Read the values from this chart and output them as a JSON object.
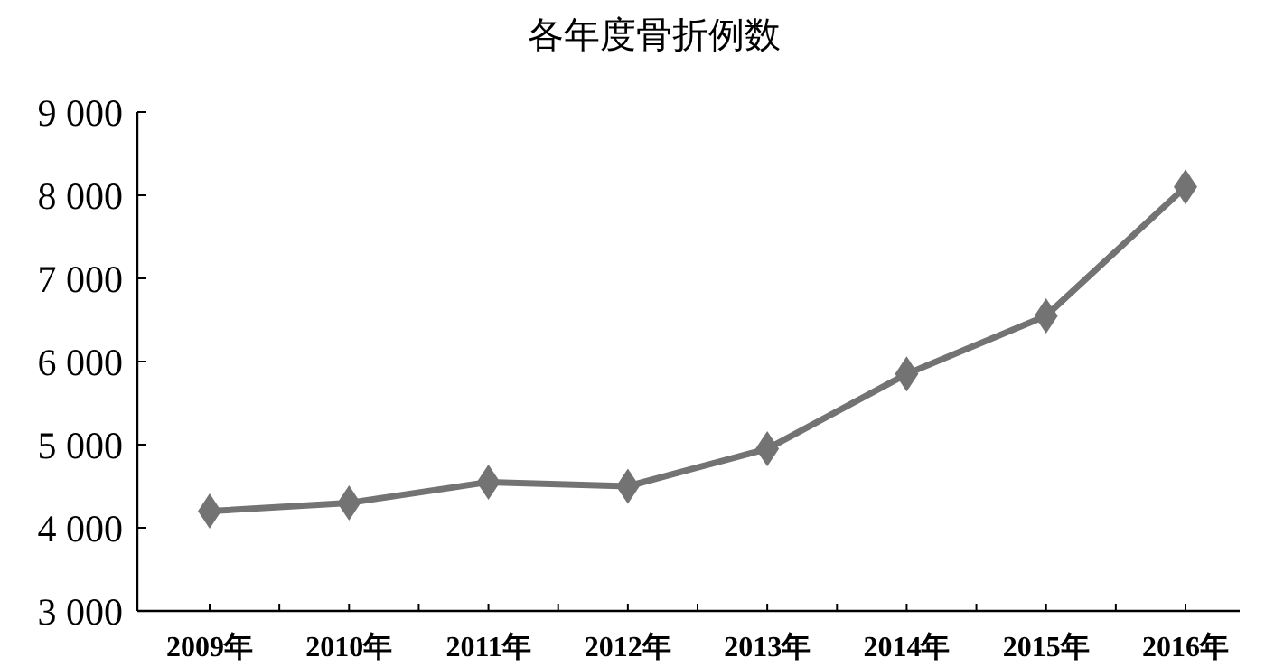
{
  "chart_data": {
    "type": "line",
    "title": "各年度骨折例数",
    "categories": [
      "2009年",
      "2010年",
      "2011年",
      "2012年",
      "2013年",
      "2014年",
      "2015年",
      "2016年"
    ],
    "series": [
      {
        "color": "#737373",
        "values": [
          4200,
          4300,
          4550,
          4500,
          4950,
          5850,
          6550,
          8100
        ]
      }
    ],
    "ylim": [
      3000,
      9000
    ],
    "yticks": [
      {
        "value": 3000,
        "label": "3 000"
      },
      {
        "value": 4000,
        "label": "4 000"
      },
      {
        "value": 5000,
        "label": "5 000"
      },
      {
        "value": 6000,
        "label": "6 000"
      },
      {
        "value": 7000,
        "label": "7 000"
      },
      {
        "value": 8000,
        "label": "8 000"
      },
      {
        "value": 9000,
        "label": "9 000"
      }
    ],
    "grid": false,
    "marker": "diamond",
    "line_style": "solid"
  }
}
